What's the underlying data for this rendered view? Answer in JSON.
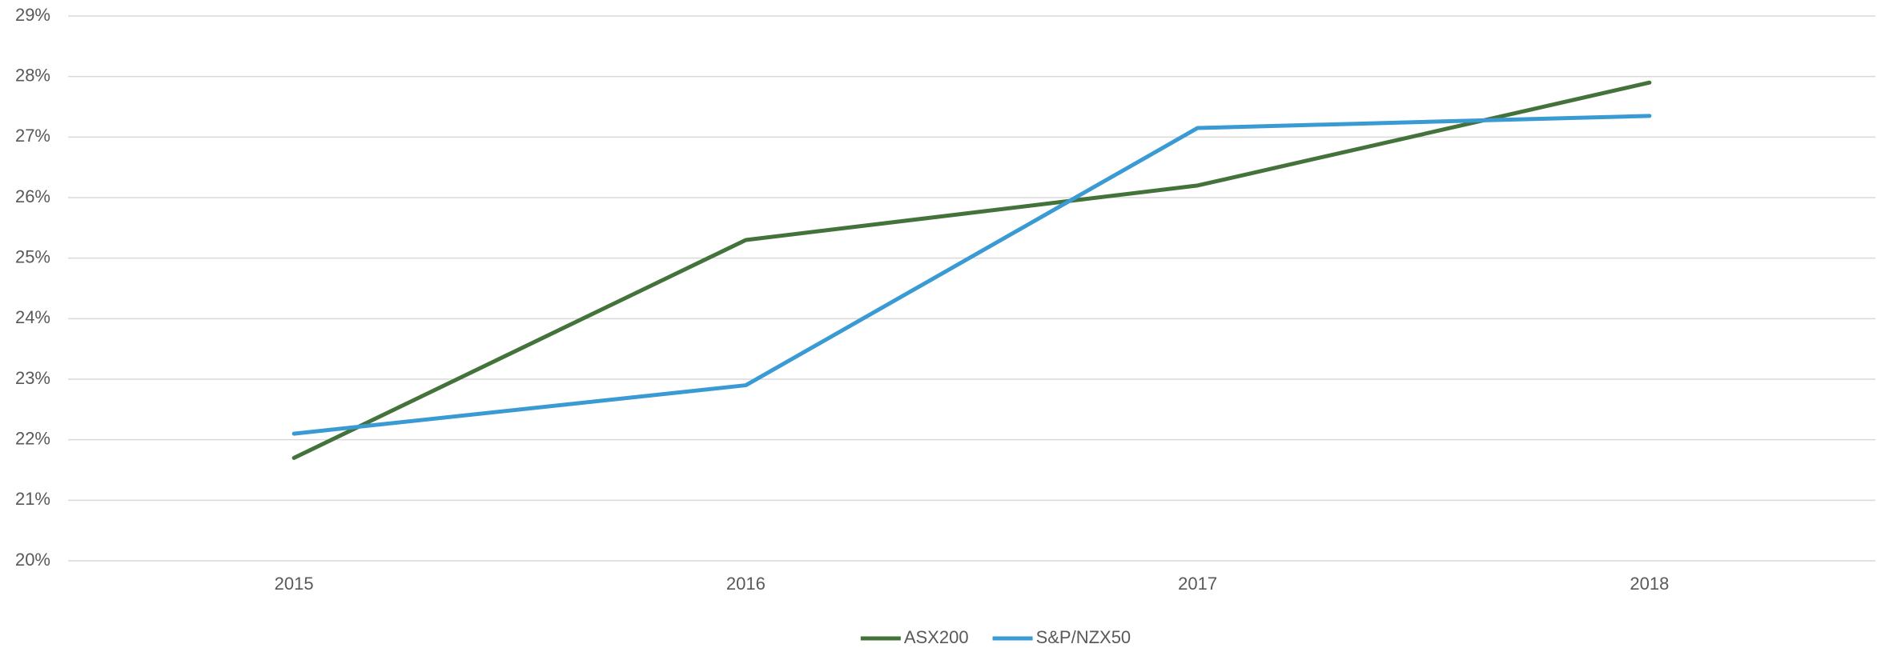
{
  "chart_data": {
    "type": "line",
    "categories": [
      "2015",
      "2016",
      "2017",
      "2018"
    ],
    "series": [
      {
        "name": "ASX200",
        "color": "#43723a",
        "values": [
          21.7,
          25.3,
          26.2,
          27.9
        ]
      },
      {
        "name": "S&P/NZX50",
        "color": "#3a9ad3",
        "values": [
          22.1,
          22.9,
          27.15,
          27.35
        ]
      }
    ],
    "ylim": [
      20,
      29
    ],
    "yticks": [
      {
        "value": 20,
        "label": "20%"
      },
      {
        "value": 21,
        "label": "21%"
      },
      {
        "value": 22,
        "label": "22%"
      },
      {
        "value": 23,
        "label": "23%"
      },
      {
        "value": 24,
        "label": "24%"
      },
      {
        "value": 25,
        "label": "25%"
      },
      {
        "value": 26,
        "label": "26%"
      },
      {
        "value": 27,
        "label": "27%"
      },
      {
        "value": 28,
        "label": "28%"
      },
      {
        "value": 29,
        "label": "29%"
      }
    ],
    "grid": true,
    "legend": "bottom"
  }
}
